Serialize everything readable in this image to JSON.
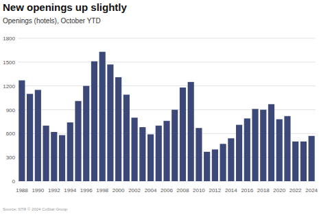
{
  "chart_data": {
    "type": "bar",
    "title": "New openings up slightly",
    "subtitle": "Openings (hotels), October YTD",
    "source": "Source: STR © 2024 CoStar Group",
    "categories": [
      "1988",
      null,
      "1990",
      null,
      "1992",
      null,
      "1994",
      null,
      "1996",
      null,
      "1998",
      null,
      "2000",
      null,
      "2002",
      null,
      "2004",
      null,
      "2006",
      null,
      "2008",
      null,
      "2010",
      null,
      "2012",
      null,
      "2014",
      null,
      "2016",
      null,
      "2018",
      null,
      "2020",
      null,
      "2022",
      null,
      "2024"
    ],
    "values": [
      1270,
      1100,
      1150,
      700,
      620,
      580,
      740,
      1010,
      1200,
      1510,
      1630,
      1470,
      1310,
      1090,
      800,
      680,
      590,
      700,
      760,
      900,
      1180,
      1250,
      670,
      370,
      400,
      470,
      540,
      710,
      790,
      910,
      900,
      970,
      780,
      820,
      500,
      500,
      570
    ],
    "color": "#3b4878",
    "ylim": [
      0,
      1800
    ],
    "yticks": [
      0,
      300,
      600,
      900,
      1200,
      1500,
      1800
    ],
    "grid": true
  }
}
